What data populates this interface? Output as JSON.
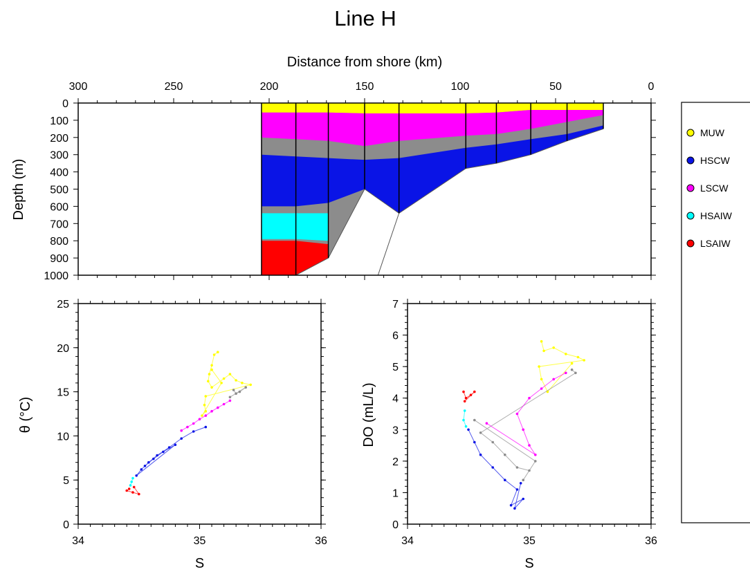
{
  "title": "Line H",
  "colors": {
    "MUW": "#ffff00",
    "HSCW": "#0a14e6",
    "LSCW": "#ff00ff",
    "HSAIW": "#00ffff",
    "LSAIW": "#ff0000",
    "unclassified": "#8c8c8c"
  },
  "chart_data": [
    {
      "type": "area",
      "name": "section",
      "xlabel": "Distance from shore (km)",
      "ylabel": "Depth (m)",
      "xlim": [
        300,
        0
      ],
      "ylim": [
        0,
        1000
      ],
      "xticks": [
        "300",
        "250",
        "200",
        "150",
        "100",
        "50",
        "0"
      ],
      "yticks": [
        "0",
        "100",
        "200",
        "300",
        "400",
        "500",
        "600",
        "700",
        "800",
        "900",
        "1000"
      ],
      "stations_km": [
        204,
        186,
        169,
        150,
        132,
        97,
        81,
        63,
        44,
        25
      ],
      "bottom_depth_m": [
        1000,
        1000,
        900,
        500,
        640,
        380,
        350,
        300,
        220,
        150
      ],
      "layers": [
        {
          "name": "MUW",
          "top": [
            0,
            0,
            0,
            0,
            0,
            0,
            0,
            0,
            0,
            0
          ],
          "base": [
            55,
            55,
            55,
            60,
            60,
            60,
            55,
            40,
            40,
            40
          ]
        },
        {
          "name": "LSCW",
          "top": [
            55,
            55,
            55,
            60,
            60,
            60,
            55,
            40,
            40,
            40
          ],
          "base": [
            200,
            210,
            220,
            250,
            220,
            190,
            180,
            150,
            110,
            70
          ]
        },
        {
          "name": "HSCW",
          "top": [
            300,
            310,
            320,
            330,
            320,
            260,
            240,
            210,
            180,
            130
          ],
          "base": [
            600,
            600,
            580,
            500,
            640,
            380,
            350,
            300,
            220,
            150
          ]
        },
        {
          "name": "HSAIW",
          "top": [
            640,
            640,
            640,
            null,
            null,
            null,
            null,
            null,
            null,
            null
          ],
          "base": [
            790,
            790,
            800,
            null,
            null,
            null,
            null,
            null,
            null,
            null
          ]
        },
        {
          "name": "LSAIW",
          "top": [
            800,
            800,
            820,
            null,
            null,
            null,
            null,
            null,
            null,
            null
          ],
          "base": [
            1000,
            1000,
            900,
            null,
            null,
            null,
            null,
            null,
            null,
            null
          ]
        }
      ]
    },
    {
      "type": "scatter",
      "name": "theta-s",
      "xlabel": "S",
      "ylabel": "θ (°C)",
      "xlim": [
        34,
        36
      ],
      "ylim": [
        0,
        25
      ],
      "xticks": [
        "34",
        "35",
        "36"
      ],
      "yticks": [
        "0",
        "5",
        "10",
        "15",
        "20",
        "25"
      ],
      "series": [
        {
          "name": "MUW",
          "points": [
            [
              35.15,
              19.5
            ],
            [
              35.12,
              19.2
            ],
            [
              35.1,
              18.0
            ],
            [
              35.08,
              17.0
            ],
            [
              35.07,
              16.2
            ],
            [
              35.1,
              15.5
            ],
            [
              35.2,
              16.5
            ],
            [
              35.25,
              17.0
            ],
            [
              35.3,
              16.3
            ],
            [
              35.35,
              16.0
            ],
            [
              35.42,
              15.8
            ],
            [
              35.05,
              14.5
            ],
            [
              35.04,
              13.5
            ],
            [
              35.05,
              12.8
            ],
            [
              35.02,
              12.3
            ],
            [
              35.18,
              16.0
            ],
            [
              35.1,
              17.5
            ]
          ]
        },
        {
          "name": "unclassified",
          "points": [
            [
              35.28,
              15.2
            ],
            [
              35.3,
              14.8
            ],
            [
              35.33,
              15.0
            ],
            [
              35.38,
              15.5
            ],
            [
              35.25,
              14.4
            ]
          ]
        },
        {
          "name": "LSCW",
          "points": [
            [
              35.25,
              14.0
            ],
            [
              35.2,
              13.6
            ],
            [
              35.15,
              13.2
            ],
            [
              35.1,
              12.8
            ],
            [
              35.05,
              12.3
            ],
            [
              35.0,
              11.9
            ],
            [
              34.95,
              11.4
            ],
            [
              34.9,
              11.0
            ],
            [
              34.85,
              10.6
            ]
          ]
        },
        {
          "name": "HSCW",
          "points": [
            [
              35.05,
              11.0
            ],
            [
              34.95,
              10.5
            ],
            [
              34.85,
              9.7
            ],
            [
              34.75,
              8.7
            ],
            [
              34.65,
              7.8
            ],
            [
              34.58,
              7.0
            ],
            [
              34.52,
              6.2
            ],
            [
              34.48,
              5.5
            ],
            [
              34.8,
              9.0
            ],
            [
              34.7,
              8.2
            ],
            [
              34.62,
              7.4
            ],
            [
              34.55,
              6.6
            ]
          ]
        },
        {
          "name": "HSAIW",
          "points": [
            [
              34.45,
              5.2
            ],
            [
              34.44,
              4.8
            ],
            [
              34.43,
              4.4
            ]
          ]
        },
        {
          "name": "LSAIW",
          "points": [
            [
              34.42,
              4.0
            ],
            [
              34.4,
              3.8
            ],
            [
              34.45,
              3.6
            ],
            [
              34.5,
              3.4
            ],
            [
              34.46,
              4.2
            ]
          ]
        }
      ]
    },
    {
      "type": "scatter",
      "name": "do-s",
      "xlabel": "S",
      "ylabel": "DO (mL/L)",
      "xlim": [
        34,
        36
      ],
      "ylim": [
        0,
        7
      ],
      "xticks": [
        "34",
        "35",
        "36"
      ],
      "yticks": [
        "0",
        "1",
        "2",
        "3",
        "4",
        "5",
        "6",
        "7"
      ],
      "series": [
        {
          "name": "MUW",
          "points": [
            [
              35.1,
              5.8
            ],
            [
              35.12,
              5.5
            ],
            [
              35.2,
              5.6
            ],
            [
              35.3,
              5.4
            ],
            [
              35.4,
              5.3
            ],
            [
              35.45,
              5.2
            ],
            [
              35.08,
              5.0
            ],
            [
              35.1,
              4.6
            ],
            [
              35.15,
              4.2
            ],
            [
              35.35,
              5.1
            ]
          ]
        },
        {
          "name": "unclassified",
          "points": [
            [
              35.35,
              4.9
            ],
            [
              35.38,
              4.8
            ],
            [
              34.6,
              2.9
            ],
            [
              34.7,
              2.6
            ],
            [
              34.8,
              2.2
            ],
            [
              34.9,
              1.8
            ],
            [
              35.0,
              1.7
            ],
            [
              34.95,
              1.4
            ],
            [
              35.05,
              2.0
            ],
            [
              34.55,
              3.3
            ]
          ]
        },
        {
          "name": "LSCW",
          "points": [
            [
              35.3,
              4.8
            ],
            [
              35.2,
              4.6
            ],
            [
              35.1,
              4.3
            ],
            [
              35.0,
              4.0
            ],
            [
              34.9,
              3.5
            ],
            [
              34.95,
              3.0
            ],
            [
              35.0,
              2.5
            ],
            [
              35.05,
              2.2
            ],
            [
              34.65,
              3.2
            ]
          ]
        },
        {
          "name": "HSCW",
          "points": [
            [
              34.5,
              3.0
            ],
            [
              34.55,
              2.6
            ],
            [
              34.6,
              2.2
            ],
            [
              34.7,
              1.8
            ],
            [
              34.8,
              1.4
            ],
            [
              34.9,
              1.1
            ],
            [
              34.85,
              0.6
            ],
            [
              34.95,
              0.8
            ],
            [
              34.88,
              0.5
            ],
            [
              34.93,
              1.3
            ]
          ]
        },
        {
          "name": "HSAIW",
          "points": [
            [
              34.47,
              3.6
            ],
            [
              34.46,
              3.3
            ],
            [
              34.48,
              3.1
            ]
          ]
        },
        {
          "name": "LSAIW",
          "points": [
            [
              34.46,
              4.2
            ],
            [
              34.48,
              4.0
            ],
            [
              34.52,
              4.1
            ],
            [
              34.55,
              4.2
            ],
            [
              34.47,
              3.9
            ]
          ]
        }
      ]
    }
  ],
  "legend": {
    "items": [
      {
        "name": "MUW",
        "label": "MUW"
      },
      {
        "name": "HSCW",
        "label": "HSCW"
      },
      {
        "name": "LSCW",
        "label": "LSCW"
      },
      {
        "name": "HSAIW",
        "label": "HSAIW"
      },
      {
        "name": "LSAIW",
        "label": "LSAIW"
      }
    ]
  }
}
